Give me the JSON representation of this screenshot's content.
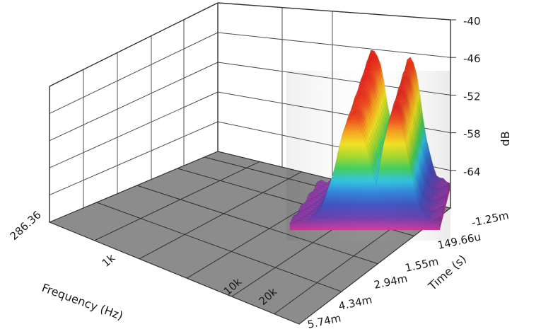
{
  "chart_data": {
    "type": "surface3d",
    "zlabel": "dB",
    "xlabel": "Frequency (Hz)",
    "ylabel": "Time (s)",
    "z_ticks": [
      "-40",
      "-46",
      "-52",
      "-58",
      "-64"
    ],
    "z_values": [
      -40,
      -46,
      -52,
      -58,
      -64
    ],
    "zlim": [
      -70,
      -40
    ],
    "x_ticks": [
      "286.36",
      "1k",
      "10k",
      "20k"
    ],
    "x_scale": "log",
    "y_ticks": [
      "-1.25m",
      "149.66u",
      "1.55m",
      "2.94m",
      "4.34m",
      "5.74m"
    ],
    "floor_color": "#8c8c8c",
    "colormap": [
      "#d6369e",
      "#6a3fb0",
      "#3f4fc0",
      "#2f7fdb",
      "#2ec4e3",
      "#3fcf5a",
      "#a8d82a",
      "#f2e21c",
      "#f7a11a",
      "#f04a1a",
      "#e6201c"
    ],
    "peaks": [
      {
        "frequency": "10k",
        "level_db": -40
      },
      {
        "frequency": "20k",
        "level_db": -40
      }
    ]
  }
}
